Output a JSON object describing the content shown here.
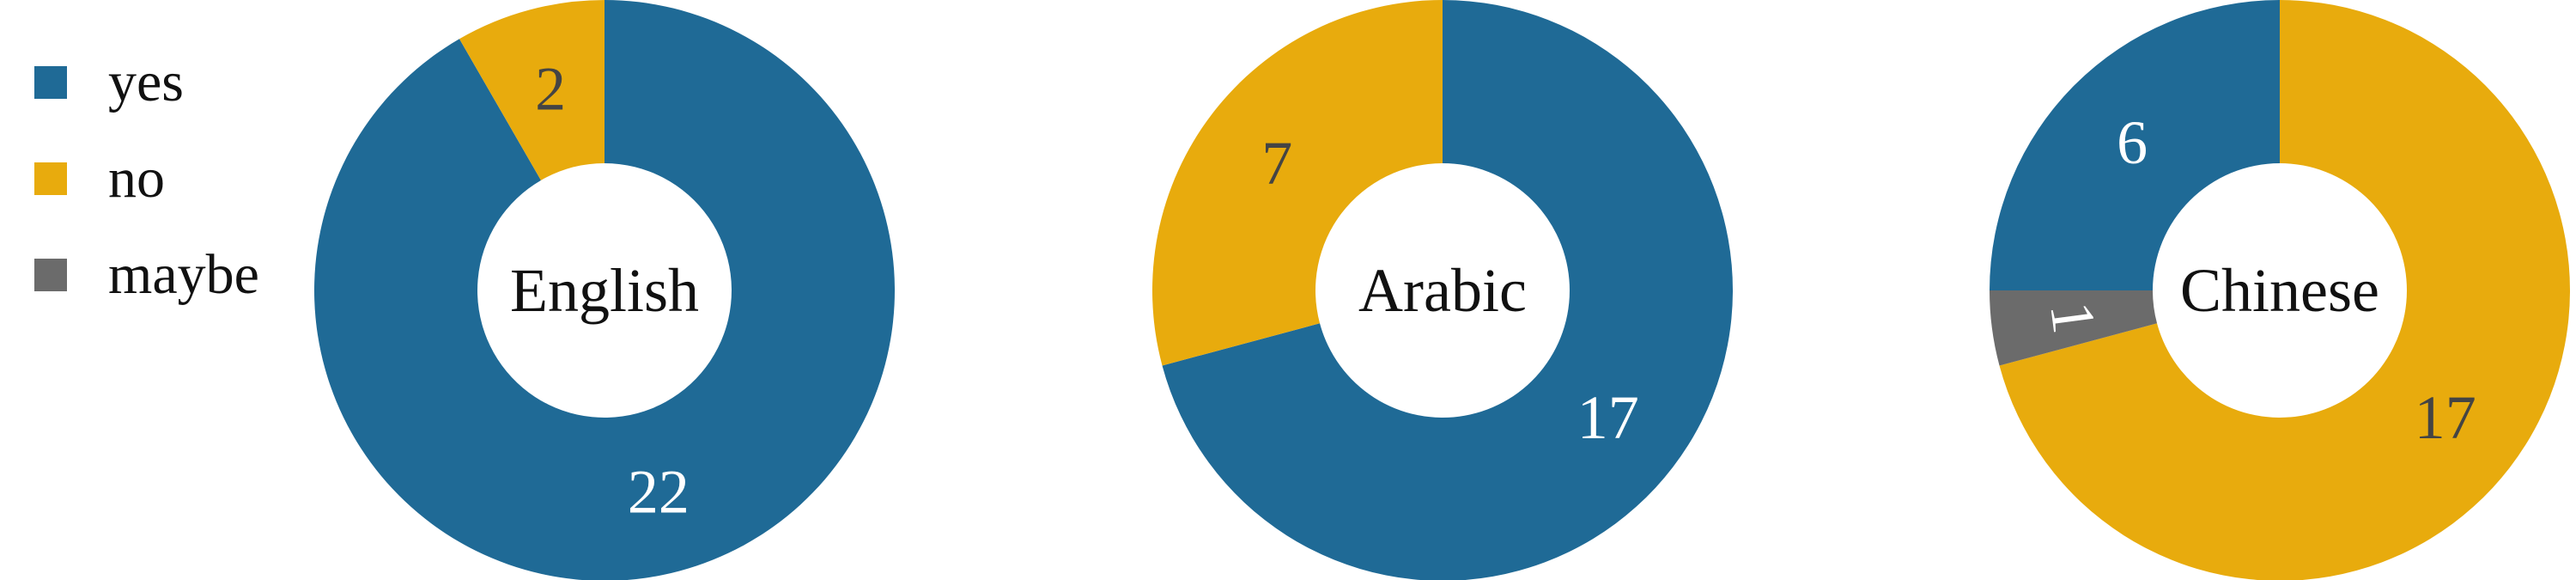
{
  "chart_data": {
    "type": "pie",
    "legend": {
      "placement": "top-left",
      "entries": [
        {
          "label": "yes",
          "color": "#1f6a96"
        },
        {
          "label": "no",
          "color": "#e8ab0d"
        },
        {
          "label": "maybe",
          "color": "#6b6b6b"
        }
      ]
    },
    "charts": [
      {
        "center_label": "English",
        "slices": [
          {
            "category": "yes",
            "value": 22,
            "color": "#1f6a96",
            "label_color": "#ffffff"
          },
          {
            "category": "no",
            "value": 2,
            "color": "#e8ab0d",
            "label_color": "#444444"
          }
        ]
      },
      {
        "center_label": "Arabic",
        "slices": [
          {
            "category": "yes",
            "value": 17,
            "color": "#1f6a96",
            "label_color": "#ffffff"
          },
          {
            "category": "no",
            "value": 7,
            "color": "#e8ab0d",
            "label_color": "#444444"
          }
        ]
      },
      {
        "center_label": "Chinese",
        "slices": [
          {
            "category": "no",
            "value": 17,
            "color": "#e8ab0d",
            "label_color": "#444444"
          },
          {
            "category": "maybe",
            "value": 1,
            "color": "#6b6b6b",
            "label_color": "#ffffff"
          },
          {
            "category": "yes",
            "value": 6,
            "color": "#1f6a96",
            "label_color": "#ffffff"
          }
        ]
      }
    ]
  }
}
